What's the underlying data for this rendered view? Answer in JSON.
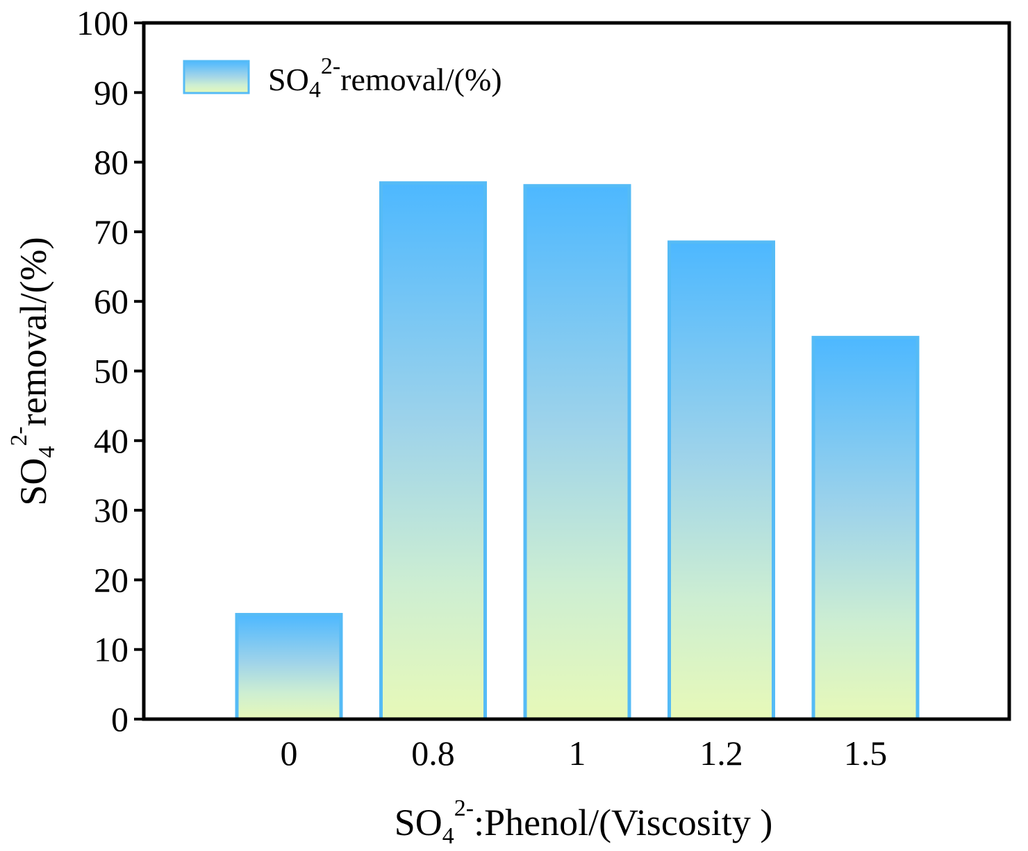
{
  "chart_data": {
    "type": "bar",
    "categories": [
      "0",
      "0.8",
      "1",
      "1.2",
      "1.5"
    ],
    "series": [
      {
        "name": "SO4 2- removal/(%)",
        "values": [
          15,
          77,
          76.6,
          68.5,
          54.8
        ]
      }
    ],
    "ylim": [
      0,
      100
    ],
    "yticks": [
      "0",
      "10",
      "20",
      "30",
      "40",
      "50",
      "60",
      "70",
      "80",
      "90",
      "100"
    ],
    "ytick_values": [
      0,
      10,
      20,
      30,
      40,
      50,
      60,
      70,
      80,
      90,
      100
    ],
    "ylabel": {
      "base": "SO",
      "sub": "4",
      "sup": "2-",
      "rest": "removal/(%)"
    },
    "xlabel": {
      "base": "SO",
      "sub": "4",
      "sup": "2-",
      "rest": ":Phenol/(Viscosity )"
    },
    "legend": {
      "base": "SO",
      "sub": "4",
      "sup": "2-",
      "rest": "removal/(%)",
      "position": "top-left"
    },
    "colors": {
      "bar_top": "#4db8ff",
      "bar_bottom": "#e5f9b8",
      "bar_edge": "#55bbf6",
      "axis": "#000000"
    }
  }
}
